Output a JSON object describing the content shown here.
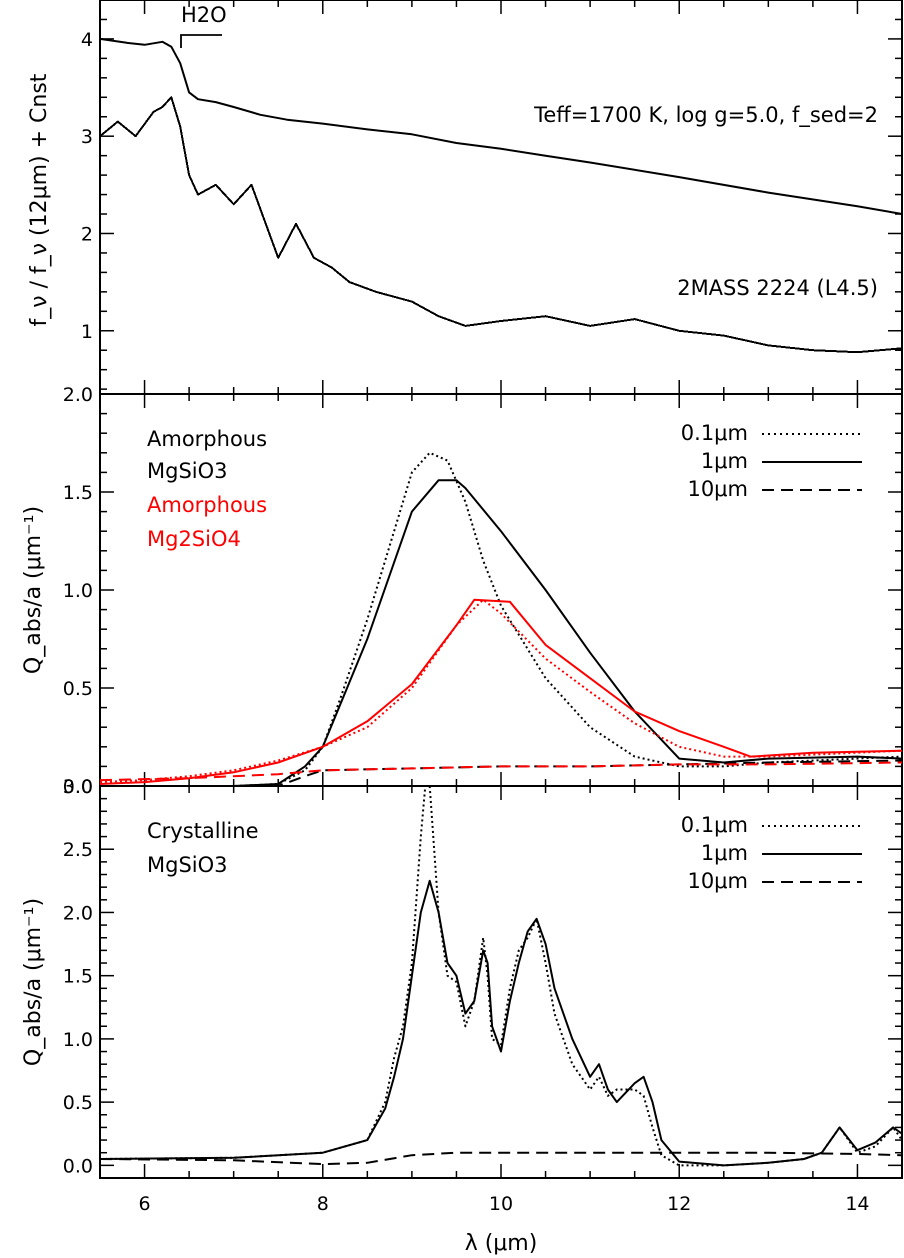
{
  "figure": {
    "x_label": "λ (μm)",
    "x_range": [
      5.5,
      14.5
    ],
    "x_ticks": [
      "6",
      "8",
      "10",
      "12",
      "14"
    ],
    "x_tick_values": [
      6,
      8,
      10,
      12,
      14
    ]
  },
  "chart_data": [
    {
      "type": "line",
      "panel": "top",
      "ylabel": "f_ν / f_ν (12μm) + Cnst",
      "ylim": [
        0.35,
        4.4
      ],
      "y_ticks": [
        1,
        2,
        3,
        4
      ],
      "annotation": "H2O",
      "labels": {
        "model": "Teff=1700 K, log g=5.0, f_sed=2",
        "observed": "2MASS 2224 (L4.5)"
      },
      "series": [
        {
          "name": "model",
          "x": [
            5.5,
            5.8,
            6.0,
            6.2,
            6.3,
            6.4,
            6.5,
            6.6,
            6.8,
            7.0,
            7.3,
            7.6,
            8.0,
            8.5,
            9.0,
            9.5,
            10.0,
            10.5,
            11.0,
            12.0,
            13.0,
            14.0,
            14.5
          ],
          "y": [
            4.0,
            3.96,
            3.94,
            3.97,
            3.92,
            3.75,
            3.45,
            3.38,
            3.35,
            3.3,
            3.22,
            3.17,
            3.13,
            3.07,
            3.02,
            2.93,
            2.87,
            2.8,
            2.73,
            2.58,
            2.42,
            2.28,
            2.2
          ]
        },
        {
          "name": "2MASS 2224",
          "x": [
            5.5,
            5.7,
            5.9,
            6.1,
            6.2,
            6.3,
            6.4,
            6.5,
            6.6,
            6.8,
            7.0,
            7.2,
            7.4,
            7.5,
            7.7,
            7.9,
            8.1,
            8.3,
            8.6,
            9.0,
            9.3,
            9.6,
            10.0,
            10.5,
            11.0,
            11.5,
            12.0,
            12.5,
            13.0,
            13.5,
            14.0,
            14.5
          ],
          "y": [
            3.0,
            3.15,
            3.0,
            3.25,
            3.3,
            3.4,
            3.1,
            2.6,
            2.4,
            2.5,
            2.3,
            2.5,
            2.0,
            1.75,
            2.1,
            1.75,
            1.65,
            1.5,
            1.4,
            1.3,
            1.15,
            1.05,
            1.1,
            1.15,
            1.05,
            1.12,
            1.0,
            0.95,
            0.85,
            0.8,
            0.78,
            0.82
          ]
        }
      ]
    },
    {
      "type": "line",
      "panel": "middle",
      "ylabel": "Q_abs/a (μm⁻¹)",
      "ylim": [
        0,
        2.0
      ],
      "y_ticks": [
        "0.0",
        "0.5",
        "1.0",
        "1.5",
        "2.0"
      ],
      "y_tick_values": [
        0,
        0.5,
        1.0,
        1.5,
        2.0
      ],
      "labels": {
        "black_1": "Amorphous",
        "black_2": "MgSiO3",
        "red_1": "Amorphous",
        "red_2": "Mg2SiO4"
      },
      "legend": [
        {
          "label": "0.1μm",
          "style": "dotted"
        },
        {
          "label": "1μm",
          "style": "solid"
        },
        {
          "label": "10μm",
          "style": "dashed"
        }
      ],
      "series": [
        {
          "name": "MgSiO3 0.1μm",
          "color": "#000000",
          "style": "dotted",
          "x": [
            5.5,
            6.5,
            7.0,
            7.5,
            7.8,
            8.0,
            8.2,
            8.5,
            8.8,
            9.0,
            9.2,
            9.4,
            9.6,
            9.8,
            10.0,
            10.5,
            11.0,
            11.5,
            12.0,
            12.5,
            13.0,
            14.5
          ],
          "y": [
            0,
            0,
            0,
            0.01,
            0.08,
            0.2,
            0.45,
            0.85,
            1.3,
            1.6,
            1.7,
            1.66,
            1.45,
            1.15,
            0.92,
            0.55,
            0.3,
            0.15,
            0.1,
            0.1,
            0.12,
            0.15
          ]
        },
        {
          "name": "MgSiO3 1μm",
          "color": "#000000",
          "style": "solid",
          "x": [
            5.5,
            6.5,
            7.0,
            7.5,
            7.8,
            8.0,
            8.5,
            9.0,
            9.3,
            9.5,
            9.6,
            10.0,
            10.5,
            11.0,
            11.5,
            12.0,
            12.5,
            13.0,
            14.0,
            14.5
          ],
          "y": [
            0,
            0,
            0,
            0.01,
            0.1,
            0.2,
            0.75,
            1.4,
            1.56,
            1.56,
            1.52,
            1.3,
            1.0,
            0.68,
            0.38,
            0.14,
            0.12,
            0.14,
            0.15,
            0.14
          ]
        },
        {
          "name": "MgSiO3 10μm",
          "color": "#000000",
          "style": "dashed",
          "x": [
            5.5,
            7.5,
            7.8,
            8.0,
            9.0,
            10.0,
            11.0,
            12.0,
            13.0,
            14.5
          ],
          "y": [
            0,
            0,
            0.05,
            0.08,
            0.09,
            0.1,
            0.1,
            0.11,
            0.12,
            0.13
          ]
        },
        {
          "name": "Mg2SiO4 0.1μm",
          "color": "#ff0000",
          "style": "dotted",
          "x": [
            5.5,
            6.0,
            6.5,
            7.0,
            7.5,
            8.0,
            8.5,
            9.0,
            9.5,
            9.8,
            10.0,
            10.5,
            11.0,
            11.5,
            12.0,
            12.5,
            13.0,
            14.0,
            14.5
          ],
          "y": [
            0.02,
            0.03,
            0.05,
            0.08,
            0.13,
            0.2,
            0.3,
            0.5,
            0.82,
            0.95,
            0.88,
            0.65,
            0.48,
            0.32,
            0.2,
            0.15,
            0.15,
            0.17,
            0.18
          ]
        },
        {
          "name": "Mg2SiO4 1μm",
          "color": "#ff0000",
          "style": "solid",
          "x": [
            5.5,
            6.0,
            6.5,
            7.0,
            7.5,
            8.0,
            8.5,
            9.0,
            9.5,
            9.7,
            10.1,
            10.5,
            11.0,
            11.5,
            12.0,
            12.5,
            12.8,
            13.5,
            14.5
          ],
          "y": [
            0.01,
            0.02,
            0.04,
            0.07,
            0.12,
            0.2,
            0.33,
            0.52,
            0.82,
            0.95,
            0.94,
            0.72,
            0.55,
            0.38,
            0.28,
            0.2,
            0.15,
            0.17,
            0.18
          ]
        },
        {
          "name": "Mg2SiO4 10μm",
          "color": "#ff0000",
          "style": "dashed",
          "x": [
            5.5,
            6.5,
            7.5,
            8.0,
            9.0,
            10.0,
            11.0,
            12.0,
            13.0,
            14.5
          ],
          "y": [
            0.03,
            0.04,
            0.06,
            0.08,
            0.09,
            0.1,
            0.1,
            0.11,
            0.11,
            0.12
          ]
        }
      ]
    },
    {
      "type": "line",
      "panel": "bottom",
      "ylabel": "Q_abs/a (μm⁻¹)",
      "ylim": [
        -0.1,
        3.0
      ],
      "y_ticks": [
        "0.0",
        "0.5",
        "1.0",
        "1.5",
        "2.0",
        "2.5",
        "3.0"
      ],
      "y_tick_values": [
        0,
        0.5,
        1.0,
        1.5,
        2.0,
        2.5,
        3.0
      ],
      "labels": {
        "line_1": "Crystalline",
        "line_2": "MgSiO3"
      },
      "legend": [
        {
          "label": "0.1μm",
          "style": "dotted"
        },
        {
          "label": "1μm",
          "style": "solid"
        },
        {
          "label": "10μm",
          "style": "dashed"
        }
      ],
      "series": [
        {
          "name": "0.1μm",
          "color": "#000000",
          "style": "dotted",
          "x": [
            5.5,
            7.0,
            8.0,
            8.5,
            8.7,
            8.8,
            8.9,
            9.0,
            9.1,
            9.15,
            9.2,
            9.3,
            9.4,
            9.5,
            9.6,
            9.7,
            9.8,
            9.85,
            9.9,
            10.0,
            10.1,
            10.2,
            10.3,
            10.4,
            10.5,
            10.6,
            10.8,
            11.0,
            11.1,
            11.2,
            11.3,
            11.5,
            11.6,
            11.7,
            11.8,
            12.0,
            12.5,
            13.0,
            13.4,
            13.6,
            13.8,
            14.0,
            14.2,
            14.4,
            14.5
          ],
          "y": [
            0.05,
            0.06,
            0.1,
            0.2,
            0.5,
            0.85,
            1.1,
            1.6,
            2.6,
            3.0,
            3.0,
            2.0,
            1.5,
            1.45,
            1.1,
            1.3,
            1.8,
            1.5,
            1.0,
            0.95,
            1.4,
            1.7,
            1.8,
            1.95,
            1.6,
            1.2,
            0.8,
            0.6,
            0.7,
            0.55,
            0.6,
            0.6,
            0.55,
            0.3,
            0.08,
            0.0,
            0.0,
            0.02,
            0.05,
            0.1,
            0.3,
            0.1,
            0.15,
            0.3,
            0.2
          ]
        },
        {
          "name": "1μm",
          "color": "#000000",
          "style": "solid",
          "x": [
            5.5,
            7.0,
            8.0,
            8.5,
            8.7,
            8.8,
            8.9,
            9.0,
            9.1,
            9.2,
            9.3,
            9.4,
            9.5,
            9.6,
            9.7,
            9.8,
            9.85,
            9.9,
            10.0,
            10.1,
            10.2,
            10.3,
            10.4,
            10.5,
            10.6,
            10.8,
            11.0,
            11.1,
            11.2,
            11.3,
            11.5,
            11.6,
            11.7,
            11.8,
            12.0,
            12.5,
            13.0,
            13.4,
            13.6,
            13.8,
            14.0,
            14.2,
            14.4,
            14.5
          ],
          "y": [
            0.05,
            0.06,
            0.1,
            0.2,
            0.45,
            0.7,
            1.0,
            1.5,
            2.0,
            2.25,
            2.0,
            1.6,
            1.5,
            1.2,
            1.3,
            1.7,
            1.6,
            1.1,
            0.9,
            1.3,
            1.6,
            1.85,
            1.95,
            1.75,
            1.4,
            1.0,
            0.7,
            0.8,
            0.6,
            0.5,
            0.65,
            0.7,
            0.5,
            0.2,
            0.03,
            0.0,
            0.02,
            0.05,
            0.1,
            0.3,
            0.12,
            0.18,
            0.3,
            0.25
          ]
        },
        {
          "name": "10μm",
          "color": "#000000",
          "style": "dashed",
          "x": [
            5.5,
            7.0,
            8.0,
            8.5,
            9.0,
            9.5,
            10.0,
            11.0,
            12.0,
            13.0,
            14.0,
            14.5
          ],
          "y": [
            0.05,
            0.04,
            0.01,
            0.02,
            0.08,
            0.1,
            0.1,
            0.1,
            0.1,
            0.1,
            0.09,
            0.08
          ]
        }
      ]
    }
  ]
}
